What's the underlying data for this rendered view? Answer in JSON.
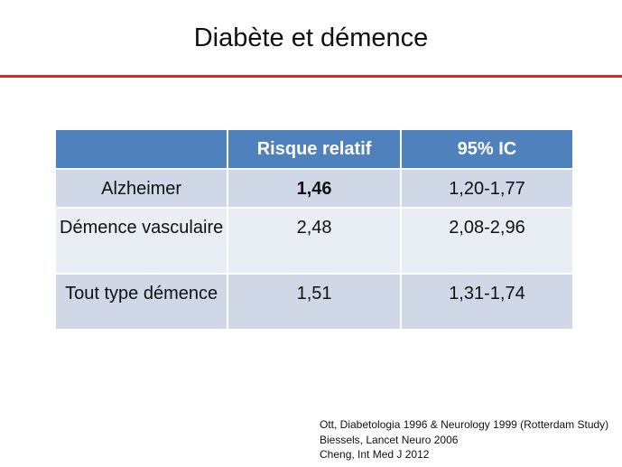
{
  "slide": {
    "title": "Diabète et démence"
  },
  "table": {
    "headers": [
      "",
      "Risque relatif",
      "95% IC"
    ],
    "rows": [
      {
        "label": "Alzheimer",
        "risk": "1,46",
        "ci": "1,20-1,77"
      },
      {
        "label": "Démence vasculaire",
        "risk": "2,48",
        "ci": "2,08-2,96"
      },
      {
        "label": "Tout type démence",
        "risk": "1,51",
        "ci": "1,31-1,74"
      }
    ]
  },
  "references": [
    "Ott, Diabetologia 1996 & Neurology 1999 (Rotterdam Study)",
    "Biessels, Lancet Neuro 2006",
    "Cheng, Int Med J 2012"
  ],
  "colors": {
    "accent_rule": "#d9262a",
    "header_fill": "#4f81bd",
    "row_dark": "#d0d8e8",
    "row_light": "#e9edf4"
  }
}
